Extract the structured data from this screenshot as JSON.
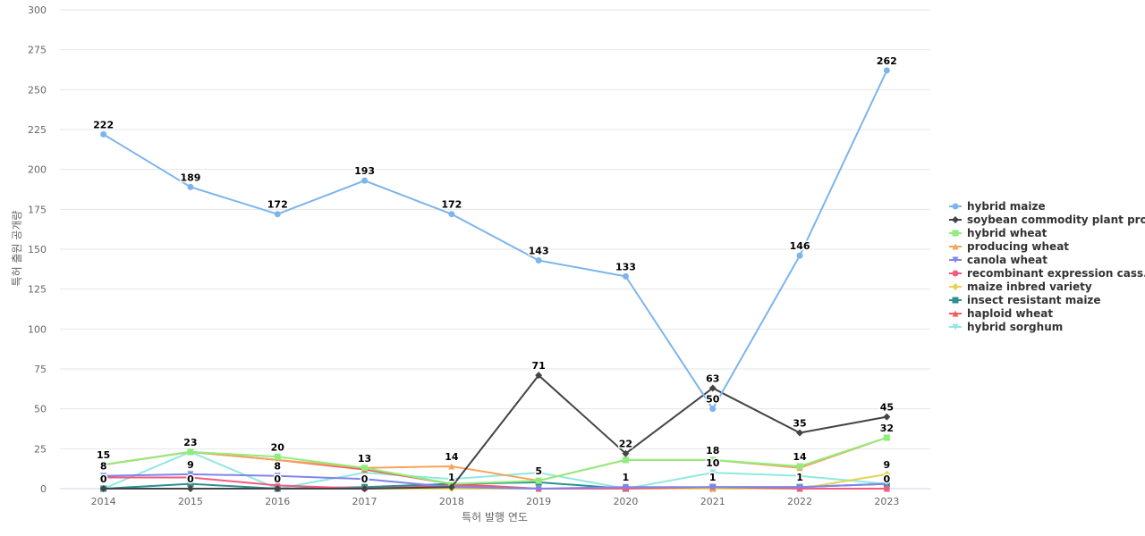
{
  "chart_data": {
    "type": "line",
    "title": "",
    "xlabel": "특허 발행 연도",
    "ylabel": "특허 출원 공개량",
    "ylim": [
      0,
      300
    ],
    "yticks": [
      0,
      25,
      50,
      75,
      100,
      125,
      150,
      175,
      200,
      225,
      250,
      275,
      300
    ],
    "grid": true,
    "legend_position": "right",
    "categories": [
      "2014",
      "2015",
      "2016",
      "2017",
      "2018",
      "2019",
      "2020",
      "2021",
      "2022",
      "2023"
    ],
    "series": [
      {
        "name": "hybrid maize",
        "color": "#7cb5ec",
        "marker": "circle",
        "values": [
          222,
          189,
          172,
          193,
          172,
          143,
          133,
          50,
          146,
          262
        ],
        "labels": true
      },
      {
        "name": "soybean commodity plant pro...",
        "color": "#434348",
        "marker": "diamond",
        "values": [
          0,
          0,
          0,
          0,
          1,
          71,
          22,
          63,
          35,
          45
        ],
        "labels": true
      },
      {
        "name": "hybrid wheat",
        "color": "#90ed7d",
        "marker": "square",
        "values": [
          15,
          23,
          20,
          13,
          3,
          5,
          18,
          18,
          14,
          32
        ],
        "labels": false
      },
      {
        "name": "producing wheat",
        "color": "#f7a35c",
        "marker": "triangle",
        "values": [
          15,
          23,
          18,
          13,
          14,
          5,
          18,
          18,
          13,
          32
        ],
        "labels": false
      },
      {
        "name": "canola wheat",
        "color": "#8085e9",
        "marker": "triangle-down",
        "values": [
          8,
          9,
          8,
          6,
          1,
          0,
          1,
          1,
          1,
          3
        ],
        "labels": false
      },
      {
        "name": "recombinant expression cass...",
        "color": "#f15c80",
        "marker": "circle",
        "values": [
          7,
          7,
          2,
          0,
          2,
          0,
          0,
          1,
          0,
          0
        ],
        "labels": false
      },
      {
        "name": "maize inbred variety",
        "color": "#e4d354",
        "marker": "diamond",
        "values": [
          0,
          0,
          0,
          0,
          0,
          0,
          0,
          0,
          0,
          9
        ],
        "labels": false
      },
      {
        "name": "insect resistant maize",
        "color": "#2b908f",
        "marker": "square",
        "values": [
          0,
          3,
          0,
          1,
          3,
          4,
          0,
          1,
          1,
          3
        ],
        "labels": false
      },
      {
        "name": "haploid wheat",
        "color": "#f45b5b",
        "marker": "triangle",
        "values": [
          15,
          23,
          18,
          12,
          3,
          0,
          0,
          0,
          0,
          0
        ],
        "labels": false
      },
      {
        "name": "hybrid sorghum",
        "color": "#91e8e1",
        "marker": "triangle-down",
        "values": [
          0,
          23,
          0,
          10,
          6,
          10,
          0,
          10,
          8,
          3
        ],
        "labels": false
      }
    ],
    "visible_data_labels": [
      {
        "x": "2014",
        "text": "222"
      },
      {
        "x": "2015",
        "text": "189"
      },
      {
        "x": "2016",
        "text": "172"
      },
      {
        "x": "2017",
        "text": "193"
      },
      {
        "x": "2018",
        "text": "172"
      },
      {
        "x": "2019",
        "text": "143"
      },
      {
        "x": "2020",
        "text": "133"
      },
      {
        "x": "2021",
        "text": "50"
      },
      {
        "x": "2022",
        "text": "146"
      },
      {
        "x": "2023",
        "text": "262"
      },
      {
        "x": "2019",
        "text": "71"
      },
      {
        "x": "2020",
        "text": "22"
      },
      {
        "x": "2021",
        "text": "63"
      },
      {
        "x": "2022",
        "text": "35"
      },
      {
        "x": "2023",
        "text": "45"
      },
      {
        "x": "2014",
        "text": "15"
      },
      {
        "x": "2015",
        "text": "23"
      },
      {
        "x": "2016",
        "text": "20"
      },
      {
        "x": "2017",
        "text": "13"
      },
      {
        "x": "2018",
        "text": "14"
      },
      {
        "x": "2019",
        "text": "5"
      },
      {
        "x": "2021",
        "text": "18"
      },
      {
        "x": "2022",
        "text": "14"
      },
      {
        "x": "2023",
        "text": "32"
      },
      {
        "x": "2014",
        "text": "8"
      },
      {
        "x": "2015",
        "text": "9"
      },
      {
        "x": "2016",
        "text": "8"
      },
      {
        "x": "2021",
        "text": "10"
      },
      {
        "x": "2023",
        "text": "9"
      },
      {
        "x": "2014",
        "text": "0"
      },
      {
        "x": "2015",
        "text": "0"
      },
      {
        "x": "2016",
        "text": "0"
      },
      {
        "x": "2017",
        "text": "0"
      },
      {
        "x": "2018",
        "text": "1"
      },
      {
        "x": "2020",
        "text": "1"
      },
      {
        "x": "2021",
        "text": "1"
      },
      {
        "x": "2022",
        "text": "1"
      },
      {
        "x": "2023",
        "text": "0"
      }
    ]
  }
}
